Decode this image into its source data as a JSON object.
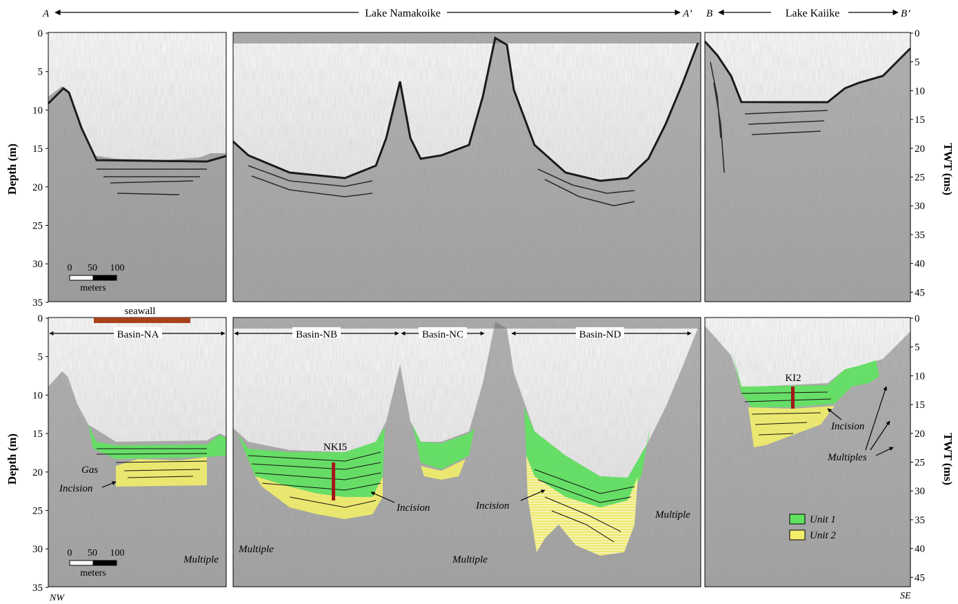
{
  "header": {
    "profile_a_start": "A",
    "profile_a_end": "A’",
    "profile_a_title": "Lake Namakoike",
    "profile_b_start": "B",
    "profile_b_end": "B’",
    "profile_b_title": "Lake Kaiike"
  },
  "axes": {
    "left_label": "Depth (m)",
    "right_label": "TWT (ms)",
    "depth_ticks": [
      "0",
      "5",
      "10",
      "15",
      "20",
      "25",
      "30",
      "35"
    ],
    "twt_ticks": [
      "0",
      "5",
      "10",
      "15",
      "20",
      "25",
      "30",
      "35",
      "40",
      "45"
    ]
  },
  "scale_bar": {
    "t0": "0",
    "t50": "50",
    "t100": "100",
    "unit": "meters"
  },
  "annotations": {
    "seawall": "seawall",
    "basin_na": "Basin-NA",
    "basin_nb": "Basin-NB",
    "basin_nc": "Basin-NC",
    "basin_nd": "Basin-ND",
    "core_nki5": "NKI5",
    "core_ki2": "KI2",
    "gas": "Gas",
    "incision": "Incision",
    "multiple": "Multiple",
    "multiples": "Multiples"
  },
  "legend": {
    "unit1": "Unit 1",
    "unit2": "Unit 2",
    "unit1_color": "#5fe35f",
    "unit2_color": "#f2ee6a"
  },
  "orientation": {
    "left": "NW",
    "right": "SE"
  },
  "colors": {
    "seawall": "#a8421c",
    "core": "#a01818"
  }
}
